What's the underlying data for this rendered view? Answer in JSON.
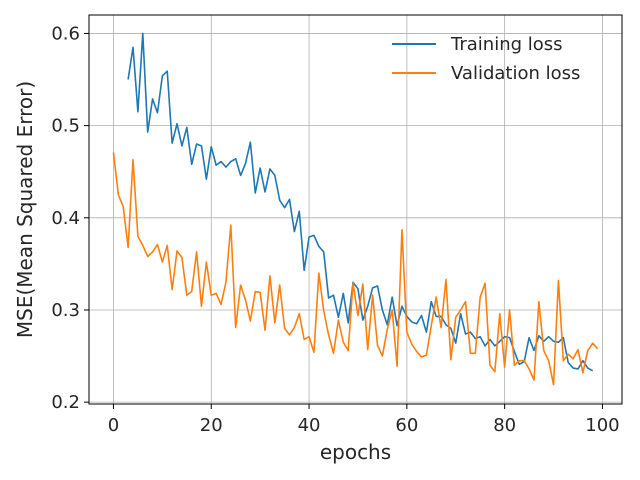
{
  "chart_data": {
    "type": "line",
    "xlabel": "epochs",
    "ylabel": "MSE(Mean Squared Error)",
    "xlim": [
      -5,
      104
    ],
    "ylim": [
      0.198,
      0.62
    ],
    "xticks": [
      "0",
      "20",
      "40",
      "60",
      "80",
      "100"
    ],
    "yticks": [
      "0.2",
      "0.3",
      "0.4",
      "0.5",
      "0.6"
    ],
    "grid": true,
    "legend_position": "top-right",
    "series": [
      {
        "name": "Training loss",
        "color": "#1f77b4",
        "x_start": 3,
        "values": [
          0.55,
          0.585,
          0.515,
          0.6,
          0.493,
          0.529,
          0.514,
          0.554,
          0.559,
          0.481,
          0.502,
          0.478,
          0.498,
          0.458,
          0.48,
          0.478,
          0.442,
          0.477,
          0.457,
          0.461,
          0.455,
          0.461,
          0.464,
          0.446,
          0.459,
          0.482,
          0.427,
          0.454,
          0.428,
          0.453,
          0.446,
          0.419,
          0.411,
          0.42,
          0.385,
          0.407,
          0.343,
          0.379,
          0.381,
          0.369,
          0.363,
          0.313,
          0.316,
          0.292,
          0.318,
          0.286,
          0.33,
          0.323,
          0.289,
          0.304,
          0.324,
          0.326,
          0.3,
          0.284,
          0.314,
          0.283,
          0.304,
          0.293,
          0.287,
          0.285,
          0.294,
          0.276,
          0.309,
          0.293,
          0.293,
          0.284,
          0.28,
          0.264,
          0.296,
          0.274,
          0.276,
          0.269,
          0.271,
          0.261,
          0.268,
          0.261,
          0.266,
          0.271,
          0.27,
          0.255,
          0.241,
          0.244,
          0.27,
          0.256,
          0.272,
          0.266,
          0.271,
          0.266,
          0.265,
          0.27,
          0.243,
          0.237,
          0.236,
          0.245,
          0.237,
          0.234
        ]
      },
      {
        "name": "Validation loss",
        "color": "#ff7f0e",
        "x_start": 0,
        "values": [
          0.471,
          0.425,
          0.412,
          0.368,
          0.463,
          0.38,
          0.37,
          0.358,
          0.363,
          0.371,
          0.352,
          0.37,
          0.322,
          0.364,
          0.357,
          0.316,
          0.32,
          0.363,
          0.304,
          0.352,
          0.316,
          0.318,
          0.306,
          0.33,
          0.392,
          0.281,
          0.327,
          0.311,
          0.288,
          0.32,
          0.319,
          0.278,
          0.337,
          0.286,
          0.327,
          0.28,
          0.273,
          0.281,
          0.296,
          0.268,
          0.271,
          0.254,
          0.34,
          0.299,
          0.273,
          0.253,
          0.289,
          0.265,
          0.256,
          0.329,
          0.294,
          0.328,
          0.257,
          0.316,
          0.262,
          0.25,
          0.279,
          0.3,
          0.239,
          0.387,
          0.276,
          0.263,
          0.255,
          0.249,
          0.251,
          0.283,
          0.314,
          0.281,
          0.333,
          0.246,
          0.292,
          0.3,
          0.309,
          0.253,
          0.253,
          0.314,
          0.329,
          0.24,
          0.233,
          0.296,
          0.238,
          0.3,
          0.24,
          0.245,
          0.245,
          0.236,
          0.224,
          0.309,
          0.256,
          0.245,
          0.219,
          0.332,
          0.245,
          0.252,
          0.247,
          0.257,
          0.232,
          0.256,
          0.264,
          0.258
        ]
      }
    ]
  }
}
